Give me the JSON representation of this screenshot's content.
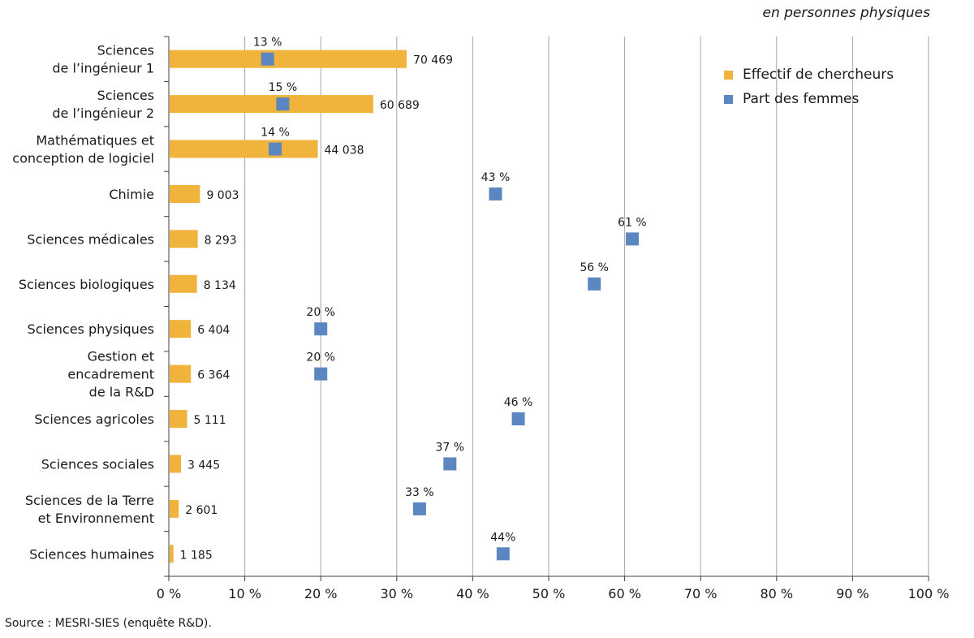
{
  "unit_note": "en personnes physiques",
  "source": "Source : MESRI-SIES (enquête R&D).",
  "colors": {
    "bar": "#f0b43c",
    "marker": "#5b86c0",
    "grid": "#a6a6a6",
    "axis": "#404040"
  },
  "legend": [
    {
      "label": "Effectif de chercheurs",
      "color": "#f0b43c"
    },
    {
      "label": "Part des femmes",
      "color": "#5b86c0"
    }
  ],
  "chart_data": {
    "type": "bar",
    "orientation": "horizontal",
    "x_ticks": [
      "0 %",
      "10 %",
      "20 %",
      "30 %",
      "40 %",
      "50 %",
      "60 %",
      "70 %",
      "80 %",
      "90 %",
      "100 %"
    ],
    "xlim": [
      0,
      100
    ],
    "grid": true,
    "legend_position": "top-right",
    "categories": [
      [
        "Sciences",
        "de l’ingénieur 1"
      ],
      [
        "Sciences",
        "de l’ingénieur 2"
      ],
      [
        "Mathématiques et",
        "conception de logiciel"
      ],
      [
        "Chimie"
      ],
      [
        "Sciences médicales"
      ],
      [
        "Sciences biologiques"
      ],
      [
        "Sciences physiques"
      ],
      [
        "Gestion et",
        "encadrement",
        "de la R&D"
      ],
      [
        "Sciences agricoles"
      ],
      [
        "Sciences sociales"
      ],
      [
        "Sciences de la Terre",
        "et Environnement"
      ],
      [
        "Sciences humaines"
      ]
    ],
    "series": [
      {
        "name": "Effectif de chercheurs",
        "kind": "bar",
        "values": [
          70469,
          60689,
          44038,
          9003,
          8293,
          8134,
          6404,
          6364,
          5111,
          3445,
          2601,
          1185
        ],
        "labels": [
          "70 469",
          "60 689",
          "44 038",
          "9 003",
          "8 293",
          "8 134",
          "6 404",
          "6 364",
          "5 111",
          "3 445",
          "2 601",
          "1 185"
        ],
        "bar_percent": [
          31.2,
          26.8,
          19.5,
          4.0,
          3.7,
          3.6,
          2.8,
          2.8,
          2.3,
          1.5,
          1.2,
          0.5
        ]
      },
      {
        "name": "Part des femmes",
        "kind": "marker",
        "values": [
          13,
          15,
          14,
          43,
          61,
          56,
          20,
          20,
          46,
          37,
          33,
          44
        ],
        "labels": [
          "13 %",
          "15 %",
          "14 %",
          "43 %",
          "61 %",
          "56 %",
          "20 %",
          "20 %",
          "46 %",
          "37 %",
          "33 %",
          "44%"
        ]
      }
    ]
  }
}
